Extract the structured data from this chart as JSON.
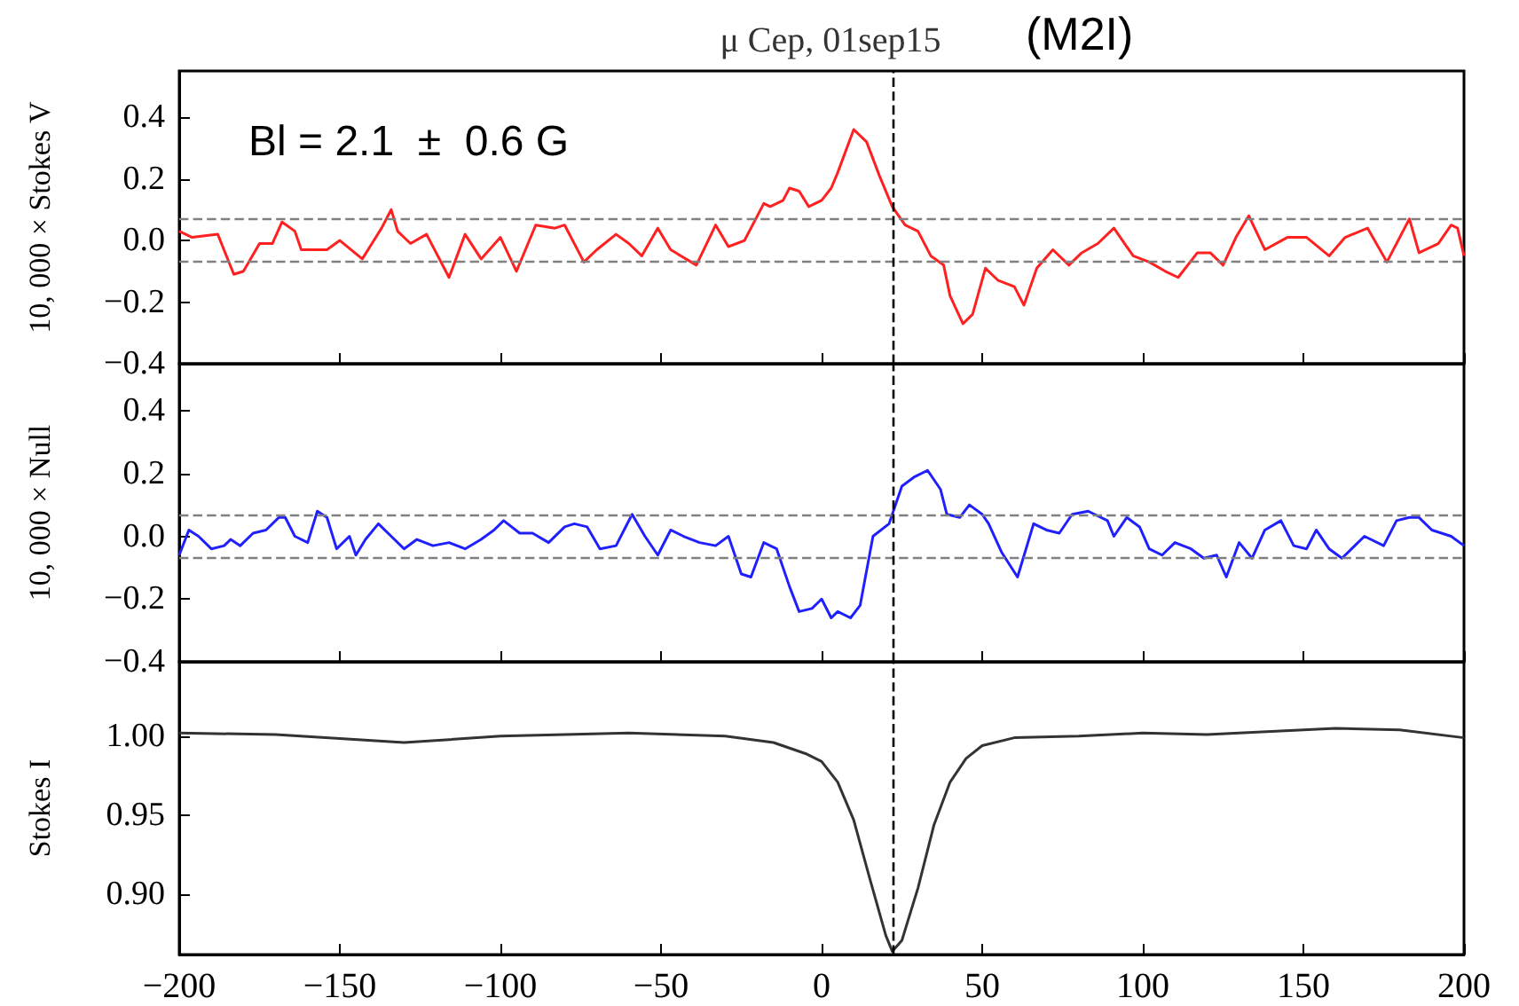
{
  "chart_data": [
    {
      "type": "line",
      "title": "μ Cep, 01sep15",
      "ylabel": "10, 000 × Stokes V",
      "annotations": [
        "Bl = 2.1  ±  0.6 G",
        "(M2I)"
      ],
      "xlim": [
        -200,
        200
      ],
      "xticks": [
        -200,
        -150,
        -100,
        -50,
        0,
        50,
        100,
        150,
        200
      ],
      "ylim": [
        -0.4,
        0.55
      ],
      "yticks": [
        {
          "value": -0.4,
          "label": "−0.4"
        },
        {
          "value": -0.2,
          "label": "−0.2"
        },
        {
          "value": 0,
          "label": "0.0"
        },
        0.2,
        0.4
      ],
      "tick_labels": "y",
      "ref_lines": [
        {
          "axis": "y",
          "value": 0.07,
          "color": "#808080",
          "line_style": "dashed"
        },
        {
          "axis": "y",
          "value": -0.07,
          "color": "#808080",
          "line_style": "dashed"
        },
        {
          "axis": "x",
          "value": 22,
          "color": "#000000",
          "line_style": "dashed"
        }
      ],
      "series": [
        {
          "color": "#ff2020",
          "x": [
            -200,
            -196,
            -188,
            -183,
            -180,
            -175,
            -171,
            -168,
            -164,
            -162,
            -158,
            -154,
            -150,
            -143,
            -140,
            -137,
            -134,
            -132,
            -128,
            -123,
            -116,
            -111,
            -106,
            -100,
            -95,
            -89,
            -83,
            -80,
            -74,
            -70,
            -64,
            -60,
            -56,
            -51,
            -47,
            -39,
            -33,
            -29,
            -24,
            -18,
            -16,
            -12,
            -10,
            -7,
            -4,
            0,
            3,
            5,
            10,
            14,
            18,
            22,
            26,
            30,
            34,
            38,
            40,
            44,
            47,
            51,
            55,
            60,
            63,
            67,
            72,
            77,
            81,
            86,
            91,
            97,
            102,
            107,
            111,
            117,
            121,
            125,
            129,
            133,
            138,
            145,
            151,
            158,
            163,
            170,
            176,
            183,
            186,
            192,
            196,
            198,
            200
          ],
          "values": [
            0.03,
            0.01,
            0.02,
            -0.11,
            -0.1,
            -0.01,
            -0.01,
            0.06,
            0.03,
            -0.03,
            -0.03,
            -0.03,
            0,
            -0.06,
            -0.01,
            0.04,
            0.1,
            0.03,
            -0.01,
            0.02,
            -0.12,
            0.02,
            -0.06,
            0.01,
            -0.1,
            0.05,
            0.04,
            0.05,
            -0.07,
            -0.03,
            0.02,
            -0.01,
            -0.05,
            0.04,
            -0.03,
            -0.08,
            0.05,
            -0.02,
            0,
            0.12,
            0.11,
            0.13,
            0.17,
            0.16,
            0.11,
            0.13,
            0.17,
            0.22,
            0.36,
            0.32,
            0.21,
            0.11,
            0.05,
            0.03,
            -0.05,
            -0.08,
            -0.18,
            -0.27,
            -0.24,
            -0.09,
            -0.13,
            -0.15,
            -0.21,
            -0.09,
            -0.03,
            -0.08,
            -0.04,
            -0.01,
            0.04,
            -0.05,
            -0.07,
            -0.1,
            -0.12,
            -0.04,
            -0.04,
            -0.08,
            0.01,
            0.08,
            -0.03,
            0.01,
            0.01,
            -0.05,
            0.01,
            0.04,
            -0.07,
            0.07,
            -0.04,
            -0.01,
            0.05,
            0.04,
            -0.05
          ]
        }
      ]
    },
    {
      "type": "line",
      "ylabel": "10, 000 × Null",
      "xlim": [
        -200,
        200
      ],
      "xticks": [
        -200,
        -150,
        -100,
        -50,
        0,
        50,
        100,
        150,
        200
      ],
      "ylim": [
        -0.4,
        0.55
      ],
      "yticks": [
        {
          "value": -0.4,
          "label": "−0.4"
        },
        {
          "value": -0.2,
          "label": "−0.2"
        },
        {
          "value": 0,
          "label": "0.0"
        },
        0.2,
        0.4
      ],
      "tick_labels": "y",
      "ref_lines": [
        {
          "axis": "y",
          "value": 0.07,
          "color": "#808080",
          "line_style": "dashed"
        },
        {
          "axis": "y",
          "value": -0.07,
          "color": "#808080",
          "line_style": "dashed"
        },
        {
          "axis": "x",
          "value": 22,
          "color": "#000000",
          "line_style": "dashed"
        }
      ],
      "series": [
        {
          "color": "#2020ff",
          "x": [
            -200,
            -197,
            -194,
            -190,
            -186,
            -184,
            -181,
            -177,
            -173,
            -169,
            -167,
            -164,
            -160,
            -157,
            -154,
            -151,
            -147,
            -145,
            -142,
            -138,
            -134,
            -130,
            -126,
            -121,
            -116,
            -111,
            -106,
            -102,
            -99,
            -94,
            -90,
            -85,
            -80,
            -77,
            -73,
            -69,
            -64,
            -59,
            -55,
            -51,
            -47,
            -43,
            -38,
            -33,
            -29,
            -25,
            -22,
            -18,
            -14,
            -10,
            -7,
            -3,
            0,
            3,
            5,
            9,
            12,
            16,
            21,
            25,
            29,
            33,
            37,
            39,
            43,
            46,
            50,
            52,
            56,
            61,
            66,
            70,
            74,
            78,
            83,
            89,
            91,
            95,
            99,
            102,
            106,
            110,
            115,
            119,
            123,
            126,
            130,
            134,
            138,
            143,
            147,
            151,
            154,
            158,
            162,
            166,
            169,
            175,
            179,
            183,
            186,
            190,
            196,
            200
          ],
          "values": [
            -0.06,
            0.02,
            0,
            -0.04,
            -0.03,
            -0.01,
            -0.03,
            0.01,
            0.02,
            0.06,
            0.06,
            0,
            -0.02,
            0.08,
            0.06,
            -0.04,
            0,
            -0.06,
            -0.01,
            0.04,
            0,
            -0.04,
            -0.01,
            -0.03,
            -0.02,
            -0.04,
            -0.01,
            0.02,
            0.05,
            0.01,
            0.01,
            -0.02,
            0.03,
            0.04,
            0.03,
            -0.04,
            -0.03,
            0.07,
            0,
            -0.06,
            0.02,
            0,
            -0.02,
            -0.03,
            0,
            -0.12,
            -0.13,
            -0.02,
            -0.04,
            -0.16,
            -0.24,
            -0.23,
            -0.2,
            -0.26,
            -0.24,
            -0.26,
            -0.22,
            0,
            0.04,
            0.16,
            0.19,
            0.21,
            0.15,
            0.07,
            0.06,
            0.1,
            0.07,
            0.04,
            -0.05,
            -0.13,
            0.04,
            0.02,
            0.01,
            0.07,
            0.08,
            0.05,
            0,
            0.06,
            0.03,
            -0.04,
            -0.06,
            -0.02,
            -0.04,
            -0.07,
            -0.06,
            -0.13,
            -0.02,
            -0.07,
            0.02,
            0.05,
            -0.03,
            -0.04,
            0.02,
            -0.04,
            -0.07,
            -0.03,
            0,
            -0.03,
            0.05,
            0.06,
            0.06,
            0.02,
            0,
            -0.03
          ]
        }
      ]
    },
    {
      "type": "line",
      "ylabel": "Stokes I",
      "xlim": [
        -200,
        200
      ],
      "xticks": [
        {
          "value": -200,
          "label": "−200"
        },
        {
          "value": -150,
          "label": "−150"
        },
        {
          "value": -100,
          "label": "−100"
        },
        {
          "value": -50,
          "label": "−50"
        },
        0,
        50,
        100,
        150,
        200
      ],
      "ylim": [
        0.862,
        1.047
      ],
      "yticks": [
        {
          "value": 0.9,
          "label": "0.90"
        },
        0.95,
        {
          "value": 1,
          "label": "1.00"
        }
      ],
      "ref_lines": [
        {
          "axis": "x",
          "value": 22,
          "color": "#000000",
          "line_style": "dashed"
        }
      ],
      "series": [
        {
          "color": "#333333",
          "x": [
            -200,
            -170,
            -130,
            -100,
            -60,
            -30,
            -15,
            -5,
            0,
            5,
            10,
            15,
            20,
            22,
            25,
            30,
            35,
            40,
            45,
            50,
            60,
            80,
            100,
            120,
            160,
            180,
            200
          ],
          "values": [
            1.002,
            1.001,
            0.996,
            1.0,
            1.002,
            1.0,
            0.996,
            0.989,
            0.984,
            0.971,
            0.947,
            0.91,
            0.874,
            0.864,
            0.871,
            0.904,
            0.944,
            0.971,
            0.986,
            0.994,
            0.999,
            1.0,
            1.002,
            1.001,
            1.005,
            1.004,
            0.999
          ]
        }
      ]
    }
  ]
}
